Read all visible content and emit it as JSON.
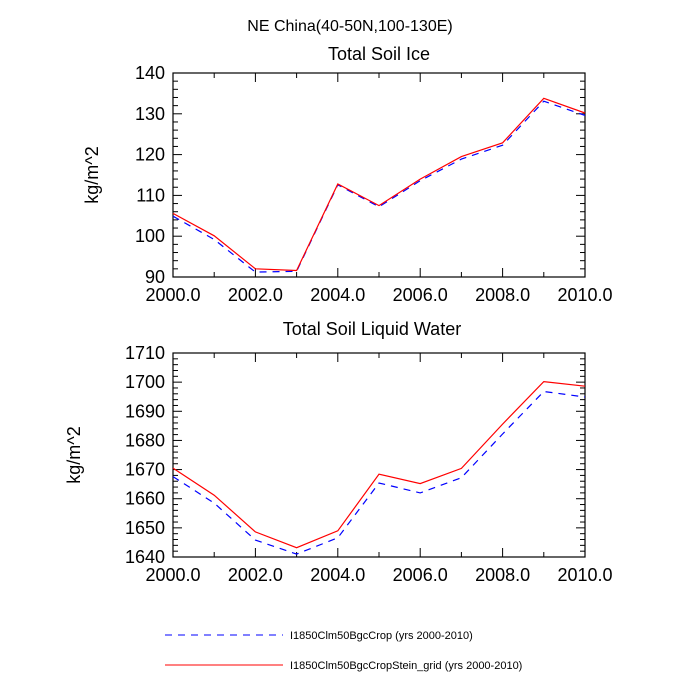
{
  "figure": {
    "title": "NE China(40-50N,100-130E)"
  },
  "legend": {
    "items": [
      {
        "label": "I1850Clm50BgcCrop (yrs 2000-2010)",
        "color": "#0000ff",
        "dash": "dashed"
      },
      {
        "label": "I1850Clm50BgcCropStein_grid (yrs 2000-2010)",
        "color": "#ff0000",
        "dash": "solid"
      }
    ]
  },
  "chart_data": [
    {
      "type": "line",
      "title": "Total Soil Ice",
      "ylabel": "kg/m^2",
      "xlabel": "",
      "xlim": [
        2000,
        2010
      ],
      "ylim": [
        90,
        140
      ],
      "xticks": [
        2000,
        2002,
        2004,
        2006,
        2008,
        2010
      ],
      "xtick_labels": [
        "2000.0",
        "2002.0",
        "2004.0",
        "2006.0",
        "2008.0",
        "2010.0"
      ],
      "yticks": [
        90,
        100,
        110,
        120,
        130,
        140
      ],
      "ytick_labels": [
        "90",
        "100",
        "110",
        "120",
        "130",
        "140"
      ],
      "x": [
        2000,
        2001,
        2002,
        2003,
        2004,
        2005,
        2006,
        2007,
        2008,
        2009,
        2010
      ],
      "series": [
        {
          "name": "I1850Clm50BgcCrop (yrs 2000-2010)",
          "color": "#0000ff",
          "dash": "dashed",
          "values": [
            104.9,
            99.2,
            91.2,
            91.4,
            112.6,
            107.2,
            113.6,
            118.9,
            122.3,
            133.1,
            129.6
          ]
        },
        {
          "name": "I1850Clm50BgcCropStein_grid (yrs 2000-2010)",
          "color": "#ff0000",
          "dash": "solid",
          "values": [
            105.6,
            100.1,
            92.0,
            91.6,
            112.8,
            107.5,
            114.0,
            119.5,
            122.9,
            133.8,
            130.2
          ]
        }
      ]
    },
    {
      "type": "line",
      "title": "Total Soil Liquid Water",
      "ylabel": "kg/m^2",
      "xlabel": "",
      "xlim": [
        2000,
        2010
      ],
      "ylim": [
        1640,
        1710
      ],
      "xticks": [
        2000,
        2002,
        2004,
        2006,
        2008,
        2010
      ],
      "xtick_labels": [
        "2000.0",
        "2002.0",
        "2004.0",
        "2006.0",
        "2008.0",
        "2010.0"
      ],
      "yticks": [
        1640,
        1650,
        1660,
        1670,
        1680,
        1690,
        1700,
        1710
      ],
      "ytick_labels": [
        "1640",
        "1650",
        "1660",
        "1670",
        "1680",
        "1690",
        "1700",
        "1710"
      ],
      "x": [
        2000,
        2001,
        2002,
        2003,
        2004,
        2005,
        2006,
        2007,
        2008,
        2009,
        2010
      ],
      "series": [
        {
          "name": "I1850Clm50BgcCrop (yrs 2000-2010)",
          "color": "#0000ff",
          "dash": "dashed",
          "values": [
            1667.6,
            1658.5,
            1645.8,
            1641.0,
            1646.6,
            1665.4,
            1662.0,
            1667.2,
            1682.2,
            1696.8,
            1694.9
          ]
        },
        {
          "name": "I1850Clm50BgcCropStein_grid (yrs 2000-2010)",
          "color": "#ff0000",
          "dash": "solid",
          "values": [
            1670.5,
            1661.2,
            1648.6,
            1643.2,
            1649.0,
            1668.4,
            1665.2,
            1670.4,
            1685.6,
            1700.2,
            1698.6
          ]
        }
      ]
    }
  ]
}
